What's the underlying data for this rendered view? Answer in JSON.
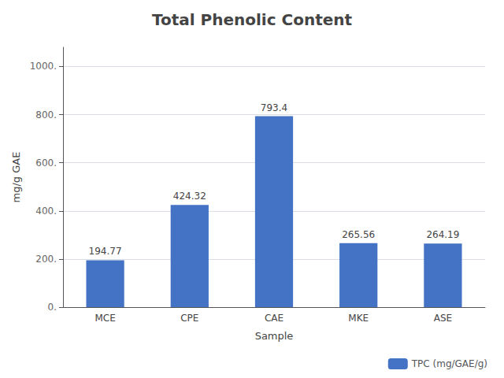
{
  "chart_data": {
    "type": "bar",
    "title": "Total Phenolic Content",
    "categories": [
      "MCE",
      "CPE",
      "CAE",
      "MKE",
      "ASE"
    ],
    "series": [
      {
        "name": "TPC (mg/GAE/g)",
        "color": "#4472C4",
        "values": [
          194.77,
          424.32,
          793.4,
          265.56,
          264.19
        ]
      }
    ],
    "xlabel": "Sample",
    "ylabel": "mg/g GAE",
    "ylim": [
      0,
      1080
    ],
    "yticks": [
      {
        "value": 0,
        "label": "0."
      },
      {
        "value": 200,
        "label": "200."
      },
      {
        "value": 400,
        "label": "400."
      },
      {
        "value": 600,
        "label": "600."
      },
      {
        "value": 800,
        "label": "800."
      },
      {
        "value": 1000,
        "label": "1000."
      }
    ],
    "grid": true,
    "legend": "lower right",
    "data_labels": true
  }
}
